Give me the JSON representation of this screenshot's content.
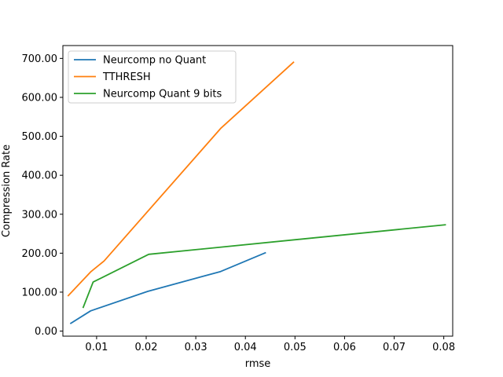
{
  "chart_data": {
    "type": "line",
    "title": "",
    "xlabel": "rmse",
    "ylabel": "Compression Rate",
    "xlim": [
      0.0032,
      0.0818
    ],
    "ylim": [
      -13,
      733
    ],
    "xticks": [
      0.01,
      0.02,
      0.03,
      0.04,
      0.05,
      0.06,
      0.07,
      0.08
    ],
    "xtick_labels": [
      "0.01",
      "0.02",
      "0.03",
      "0.04",
      "0.05",
      "0.06",
      "0.07",
      "0.08"
    ],
    "yticks": [
      0,
      100,
      200,
      300,
      400,
      500,
      600,
      700
    ],
    "ytick_labels": [
      "0.00",
      "100.00",
      "200.00",
      "300.00",
      "400.00",
      "500.00",
      "600.00",
      "700.00"
    ],
    "grid": false,
    "legend_position": "top-left",
    "series": [
      {
        "name": "Neurcomp no Quant",
        "color": "#1f77b4",
        "points": [
          [
            0.0048,
            20
          ],
          [
            0.0088,
            52
          ],
          [
            0.0203,
            102
          ],
          [
            0.035,
            153
          ],
          [
            0.044,
            201
          ]
        ]
      },
      {
        "name": "TTHRESH",
        "color": "#ff7f0e",
        "points": [
          [
            0.0043,
            91
          ],
          [
            0.0088,
            152
          ],
          [
            0.0115,
            180
          ],
          [
            0.035,
            520
          ],
          [
            0.0497,
            690
          ]
        ]
      },
      {
        "name": "Neurcomp Quant 9 bits",
        "color": "#2ca02c",
        "points": [
          [
            0.0073,
            61
          ],
          [
            0.0093,
            126
          ],
          [
            0.0205,
            197
          ],
          [
            0.0803,
            273
          ]
        ]
      }
    ]
  }
}
